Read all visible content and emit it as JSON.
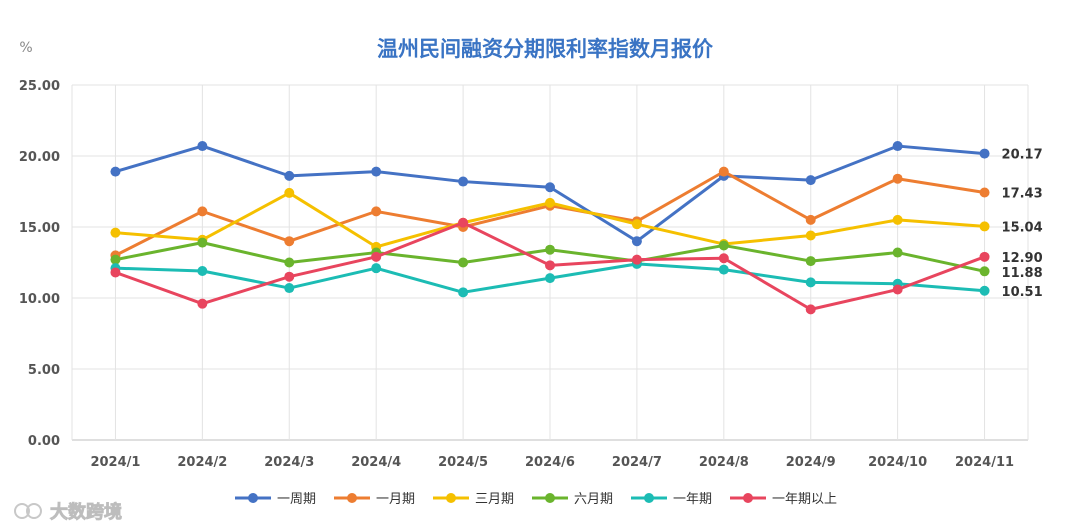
{
  "unit_label": "%",
  "watermark": "大数跨境",
  "chart_data": {
    "type": "line",
    "title": "温州民间融资分期限利率指数月报价",
    "xlabel": "",
    "ylabel": "",
    "categories": [
      "2024/1",
      "2024/2",
      "2024/3",
      "2024/4",
      "2024/5",
      "2024/6",
      "2024/7",
      "2024/8",
      "2024/9",
      "2024/10",
      "2024/11"
    ],
    "ylim": [
      0,
      25
    ],
    "yticks": [
      "0.00",
      "5.00",
      "10.00",
      "15.00",
      "20.00",
      "25.00"
    ],
    "grid": true,
    "legend_position": "bottom",
    "series": [
      {
        "name": "一周期",
        "color": "#4472c4",
        "values": [
          18.9,
          20.7,
          18.6,
          18.9,
          18.2,
          17.8,
          14.0,
          18.6,
          18.3,
          20.7,
          20.17
        ],
        "end_label": "20.17"
      },
      {
        "name": "一月期",
        "color": "#ed7d31",
        "values": [
          13.0,
          16.1,
          14.0,
          16.1,
          15.0,
          16.5,
          15.4,
          18.9,
          15.5,
          18.4,
          17.43
        ],
        "end_label": "17.43"
      },
      {
        "name": "三月期",
        "color": "#f5c000",
        "values": [
          14.6,
          14.1,
          17.4,
          13.6,
          15.3,
          16.7,
          15.2,
          13.8,
          14.4,
          15.5,
          15.04
        ],
        "end_label": "15.04"
      },
      {
        "name": "六月期",
        "color": "#6ab42d",
        "values": [
          12.7,
          13.9,
          12.5,
          13.2,
          12.5,
          13.4,
          12.6,
          13.7,
          12.6,
          13.2,
          11.88
        ],
        "end_label": "11.88"
      },
      {
        "name": "一年期",
        "color": "#1cbcb4",
        "values": [
          12.1,
          11.9,
          10.7,
          12.1,
          10.4,
          11.4,
          12.4,
          12.0,
          11.1,
          11.0,
          10.51
        ],
        "end_label": "10.51"
      },
      {
        "name": "一年期以上",
        "color": "#e8455e",
        "values": [
          11.8,
          9.6,
          11.5,
          12.9,
          15.3,
          12.3,
          12.7,
          12.8,
          9.2,
          10.6,
          12.9
        ],
        "end_label": "12.90"
      }
    ]
  }
}
